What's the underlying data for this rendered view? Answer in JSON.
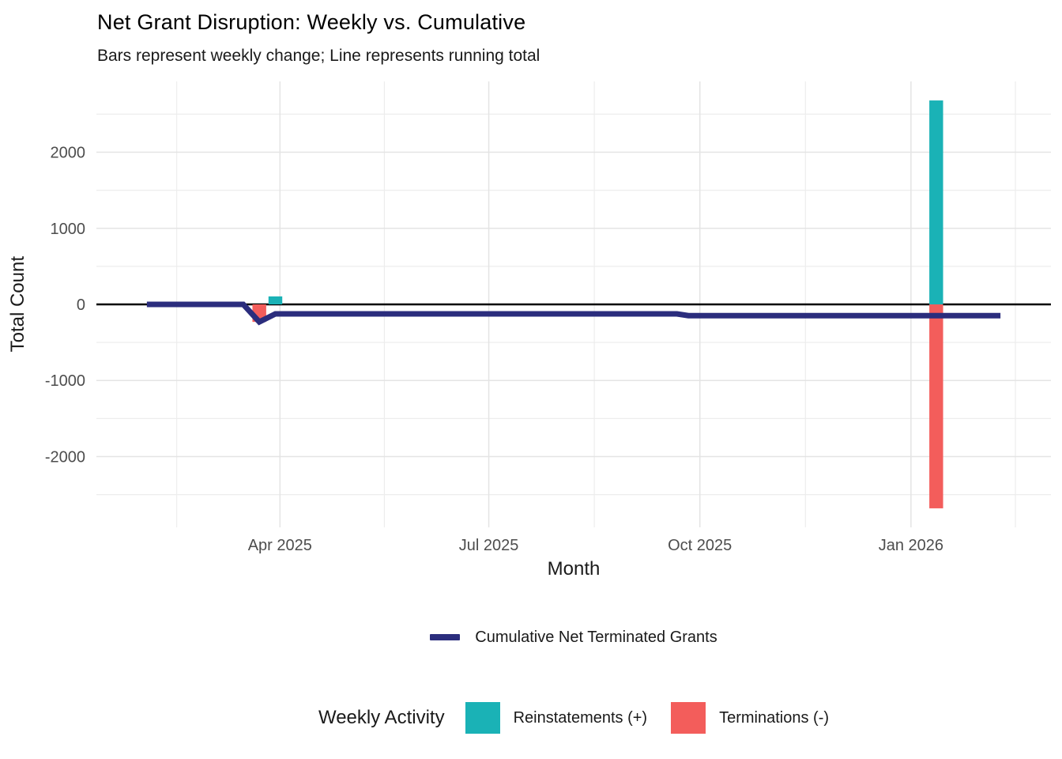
{
  "header": {
    "title": "Net Grant Disruption: Weekly vs. Cumulative",
    "subtitle": "Bars represent weekly change; Line represents running total"
  },
  "axes": {
    "x_label": "Month",
    "y_label": "Total Count"
  },
  "legends": {
    "line": {
      "label": "Cumulative Net Terminated Grants",
      "color": "#2B2D7D"
    },
    "weekly": {
      "title": "Weekly Activity",
      "items": [
        {
          "label": "Reinstatements (+)",
          "color": "#1AB2B6"
        },
        {
          "label": "Terminations (-)",
          "color": "#F35D5B"
        }
      ]
    }
  },
  "chart_data": {
    "type": "bar+line",
    "title": "Net Grant Disruption: Weekly vs. Cumulative",
    "subtitle": "Bars represent weekly change; Line represents running total",
    "xlabel": "Month",
    "ylabel": "Total Count",
    "grid": true,
    "legend_position": "bottom",
    "x_axis": {
      "unit": "days since 2025-01-01",
      "xlim": [
        10,
        426
      ],
      "major_ticks": [
        {
          "day": 90,
          "label": "Apr 2025"
        },
        {
          "day": 181,
          "label": "Jul 2025"
        },
        {
          "day": 273,
          "label": "Oct 2025"
        },
        {
          "day": 365,
          "label": "Jan 2026"
        }
      ],
      "minor_tick_days": [
        45,
        135.5,
        227,
        319,
        410.5
      ]
    },
    "y_axis": {
      "ylim": [
        -2930,
        2930
      ],
      "major_ticks": [
        {
          "value": 2000,
          "label": "2000"
        },
        {
          "value": 1000,
          "label": "1000"
        },
        {
          "value": 0,
          "label": "0"
        },
        {
          "value": -1000,
          "label": "-1000"
        },
        {
          "value": -2000,
          "label": "-2000"
        }
      ],
      "minor_tick_values": [
        2500,
        1500,
        500,
        -500,
        -1500,
        -2500
      ]
    },
    "zero_line_color": "#000000",
    "bar_width_days": 6,
    "bar_series": [
      {
        "name": "Terminations (-)",
        "color": "#F35D5B",
        "points": [
          {
            "day": 81,
            "approx_date": "2025-03-22",
            "value": -230
          },
          {
            "day": 376,
            "approx_date": "2026-01-11",
            "value": -2680
          }
        ]
      },
      {
        "name": "Reinstatements (+)",
        "color": "#1AB2B6",
        "points": [
          {
            "day": 88,
            "approx_date": "2025-03-29",
            "value": 105
          },
          {
            "day": 376,
            "approx_date": "2026-01-11",
            "value": 2680
          }
        ]
      }
    ],
    "line_series": {
      "name": "Cumulative Net Terminated Grants",
      "color": "#2B2D7D",
      "stroke_width": 7,
      "points": [
        {
          "day": 32,
          "value": 0
        },
        {
          "day": 74,
          "value": 0
        },
        {
          "day": 81,
          "value": -230
        },
        {
          "day": 88,
          "value": -125
        },
        {
          "day": 263,
          "value": -125
        },
        {
          "day": 268,
          "value": -148
        },
        {
          "day": 404,
          "value": -148
        }
      ]
    },
    "style": {
      "major_grid_color": "#E4E4E4",
      "minor_grid_color": "#EDEDED",
      "tick_label_color": "#4D4D4D"
    }
  }
}
